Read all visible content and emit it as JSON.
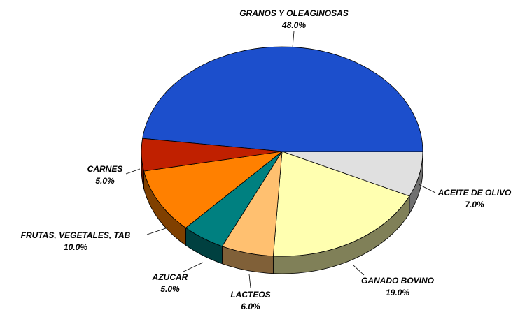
{
  "chart_data": {
    "type": "pie",
    "categories": [
      "GRANOS Y OLEAGINOSAS",
      "ACEITE DE OLIVO",
      "GANADO BOVINO",
      "LACTEOS",
      "AZUCAR",
      "FRUTAS, VEGETALES, TAB",
      "CARNES"
    ],
    "values": [
      48,
      7,
      19,
      6,
      5,
      10,
      5
    ],
    "value_labels": [
      "48.0%",
      "7.0%",
      "19.0%",
      "6.0%",
      "5.0%",
      "10.0%",
      "5.0%"
    ],
    "colors": [
      "#1c4fcc",
      "#e0e0e0",
      "#ffffb0",
      "#ffc070",
      "#008080",
      "#ff8000",
      "#c02000"
    ]
  }
}
